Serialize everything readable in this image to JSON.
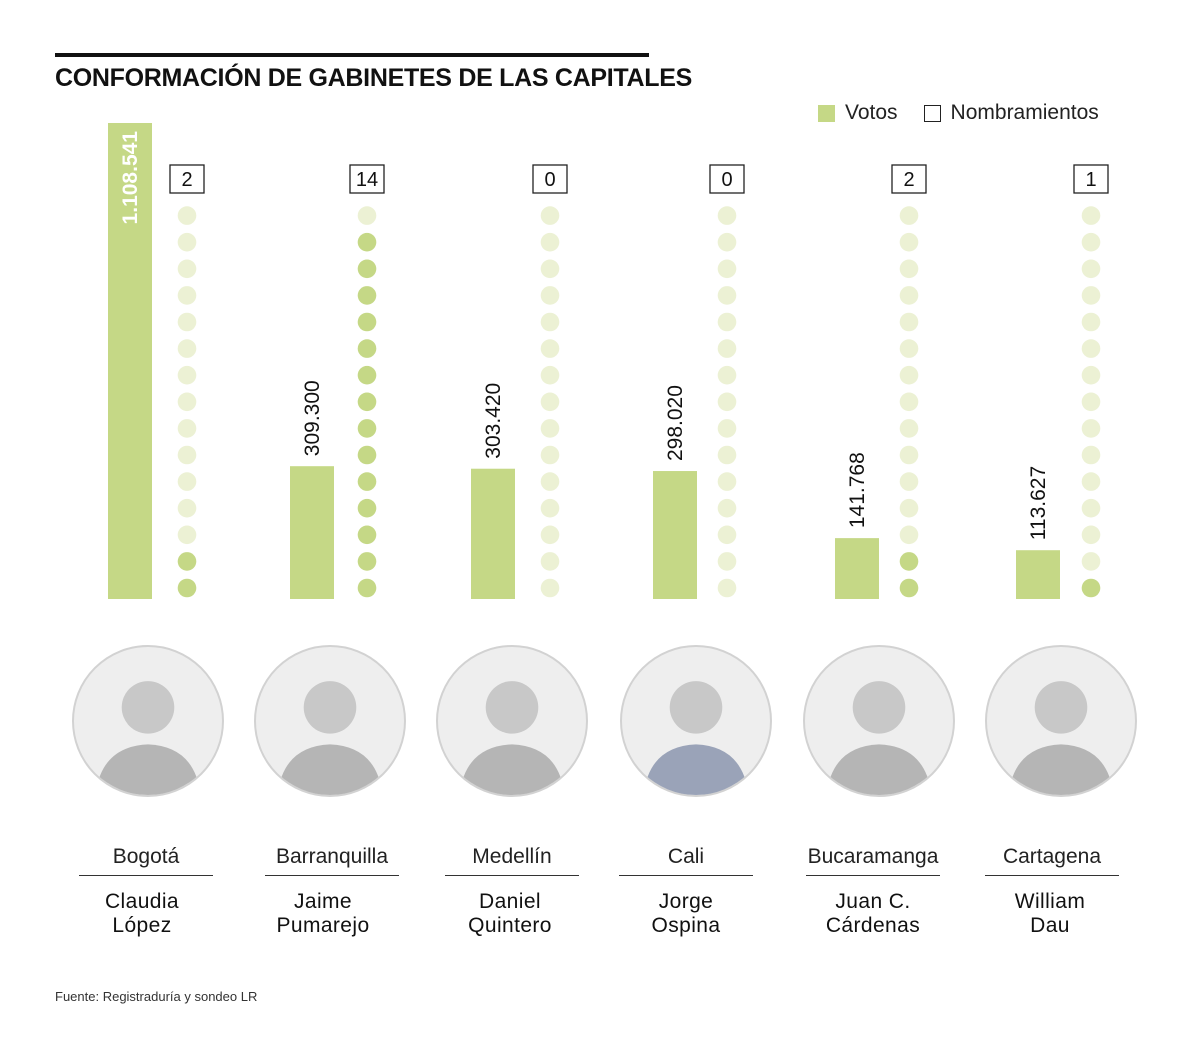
{
  "header": {
    "title": "CONFORMACIÓN DE GABINETES DE LAS CAPITALES"
  },
  "legend": {
    "votes_label": "Votos",
    "appointments_label": "Nombramientos"
  },
  "colors": {
    "bar": "#c5d886",
    "dot_filled": "#c5d886",
    "dot_empty": "#ecf1d4",
    "text": "#1a1a1a"
  },
  "chart_data": {
    "type": "bar",
    "title": "CONFORMACIÓN DE GABINETES DE LAS CAPITALES",
    "categories": [
      "Bogotá",
      "Barranquilla",
      "Medellín",
      "Cali",
      "Bucaramanga",
      "Cartagena"
    ],
    "series": [
      {
        "name": "Votos",
        "values": [
          1108541,
          309300,
          303420,
          298020,
          141768,
          113627
        ],
        "labels": [
          "1.108.541",
          "309.300",
          "303.420",
          "298.020",
          "141.768",
          "113.627"
        ]
      },
      {
        "name": "Nombramientos",
        "values": [
          2,
          14,
          0,
          0,
          2,
          1
        ],
        "max": 15
      }
    ],
    "xlabel": "",
    "ylabel": "",
    "ylim": [
      0,
      1108541
    ]
  },
  "mayors": [
    {
      "city": "Bogotá",
      "first": "Claudia",
      "last": "López",
      "icon": "portrait-icon"
    },
    {
      "city": "Barranquilla",
      "first": "Jaime",
      "last": "Pumarejo",
      "icon": "portrait-icon"
    },
    {
      "city": "Medellín",
      "first": "Daniel",
      "last": "Quintero",
      "icon": "portrait-icon"
    },
    {
      "city": "Cali",
      "first": "Jorge",
      "last": "Ospina",
      "icon": "portrait-icon"
    },
    {
      "city": "Bucaramanga",
      "first": "Juan C.",
      "last": "Cárdenas",
      "icon": "portrait-icon"
    },
    {
      "city": "Cartagena",
      "first": "William",
      "last": "Dau",
      "icon": "portrait-icon"
    }
  ],
  "footer": {
    "source": "Fuente: Registraduría y sondeo LR"
  }
}
